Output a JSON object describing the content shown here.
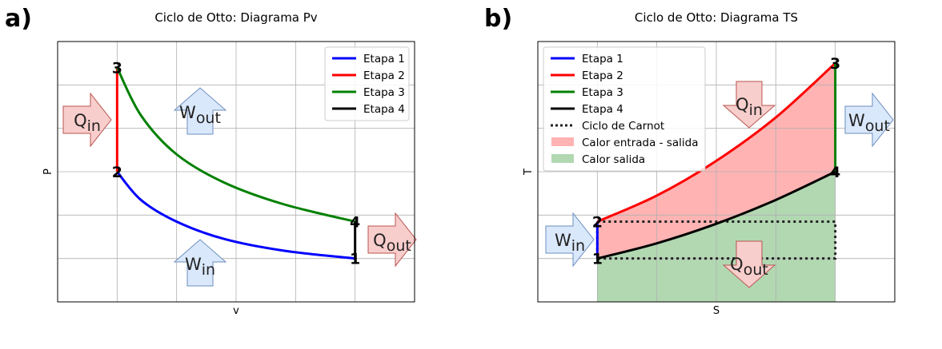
{
  "panel_labels": {
    "left": "a)",
    "right": "b)"
  },
  "chart_data": [
    {
      "type": "line",
      "title": "Ciclo de Otto: Diagrama Pv",
      "xlabel": "v",
      "ylabel": "P",
      "xlim": [
        0,
        6
      ],
      "ylim": [
        0,
        6
      ],
      "grid": true,
      "legend_position": "top-right",
      "series": [
        {
          "name": "Etapa 1",
          "color": "#0000ff",
          "x": [
            1,
            1.5,
            2,
            3,
            4,
            5
          ],
          "y": [
            3,
            2.0,
            1.58,
            1.13,
            0.89,
            1
          ]
        },
        {
          "name": "Etapa 2",
          "color": "#ff0000",
          "x": [
            1,
            1
          ],
          "y": [
            3,
            5.4
          ]
        },
        {
          "name": "Etapa 3",
          "color": "#008000",
          "x": [
            1,
            1.5,
            2,
            3,
            4,
            5
          ],
          "y": [
            5.4,
            3.9,
            3.2,
            2.4,
            2.0,
            1.85
          ]
        },
        {
          "name": "Etapa 4",
          "color": "#000000",
          "x": [
            5,
            5
          ],
          "y": [
            1.85,
            1
          ]
        }
      ],
      "point_labels": [
        {
          "text": "1",
          "x": 5,
          "y": 1
        },
        {
          "text": "2",
          "x": 1,
          "y": 3
        },
        {
          "text": "3",
          "x": 1,
          "y": 5.4
        },
        {
          "text": "4",
          "x": 5,
          "y": 1.85
        }
      ],
      "arrow_labels": {
        "qin_main": "Q",
        "qin_sub": "in",
        "wout_main": "W",
        "wout_sub": "out",
        "win_main": "W",
        "win_sub": "in",
        "qout_main": "Q",
        "qout_sub": "out"
      }
    },
    {
      "type": "line",
      "title": "Ciclo de Otto: Diagrama TS",
      "xlabel": "S",
      "ylabel": "T",
      "xlim": [
        0,
        6
      ],
      "ylim": [
        0,
        6
      ],
      "grid": true,
      "legend_position": "top-left",
      "series": [
        {
          "name": "Etapa 1",
          "color": "#0000ff",
          "x": [
            1,
            1
          ],
          "y": [
            1,
            1.85
          ]
        },
        {
          "name": "Etapa 2",
          "color": "#ff0000",
          "x": [
            1,
            2,
            3,
            4,
            5
          ],
          "y": [
            1.85,
            2.45,
            3.25,
            4.25,
            5.5
          ]
        },
        {
          "name": "Etapa 3",
          "color": "#008000",
          "x": [
            5,
            5
          ],
          "y": [
            5.5,
            3
          ]
        },
        {
          "name": "Etapa 4",
          "color": "#000000",
          "x": [
            1,
            2,
            3,
            4,
            5
          ],
          "y": [
            1,
            1.35,
            1.8,
            2.35,
            3
          ]
        },
        {
          "name": "Ciclo de Carnot",
          "color": "#222222",
          "style": "dotted",
          "x": [
            1,
            5,
            5,
            1,
            1
          ],
          "y": [
            1.85,
            1.85,
            1,
            1,
            1.85
          ]
        },
        {
          "name": "Calor entrada - salida",
          "color": "#ffb3b3",
          "style": "fill"
        },
        {
          "name": "Calor salida",
          "color": "#b2d8b2",
          "style": "fill"
        }
      ],
      "point_labels": [
        {
          "text": "1",
          "x": 1,
          "y": 1
        },
        {
          "text": "2",
          "x": 1,
          "y": 1.85
        },
        {
          "text": "3",
          "x": 5,
          "y": 5.5
        },
        {
          "text": "4",
          "x": 5,
          "y": 3
        }
      ],
      "arrow_labels": {
        "qin_main": "Q",
        "qin_sub": "in",
        "wout_main": "W",
        "wout_sub": "out",
        "win_main": "W",
        "win_sub": "in",
        "qout_main": "Q",
        "qout_sub": "out"
      }
    }
  ]
}
